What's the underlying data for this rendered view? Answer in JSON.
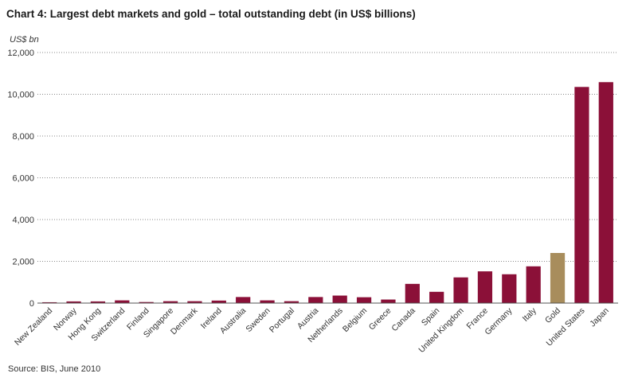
{
  "chart_data": {
    "type": "bar",
    "title": "Chart 4: Largest debt markets and gold – total outstanding debt (in US$ billions)",
    "ylabel": "US$ bn",
    "source": "Source: BIS, June 2010",
    "ylim": [
      0,
      12000
    ],
    "yticks": [
      "0",
      "2,000",
      "4,000",
      "6,000",
      "8,000",
      "10,000",
      "12,000"
    ],
    "ytick_values": [
      0,
      2000,
      4000,
      6000,
      8000,
      10000,
      12000
    ],
    "grid": true,
    "categories": [
      "New Zealand",
      "Norway",
      "Hong Kong",
      "Switzerland",
      "Finland",
      "Singapore",
      "Denmark",
      "Ireland",
      "Australia",
      "Sweden",
      "Portugal",
      "Austria",
      "Netherlands",
      "Belgium",
      "Greece",
      "Canada",
      "Spain",
      "United Kingdom",
      "France",
      "Germany",
      "Italy",
      "Gold",
      "United States",
      "Japan"
    ],
    "values": [
      40,
      80,
      80,
      130,
      50,
      90,
      90,
      120,
      290,
      130,
      90,
      290,
      360,
      280,
      170,
      920,
      540,
      1230,
      1520,
      1380,
      1760,
      2400,
      10350,
      10580
    ],
    "colors": {
      "debt": "#8b1038",
      "gold": "#a88d5c"
    },
    "highlight_category": "Gold"
  }
}
